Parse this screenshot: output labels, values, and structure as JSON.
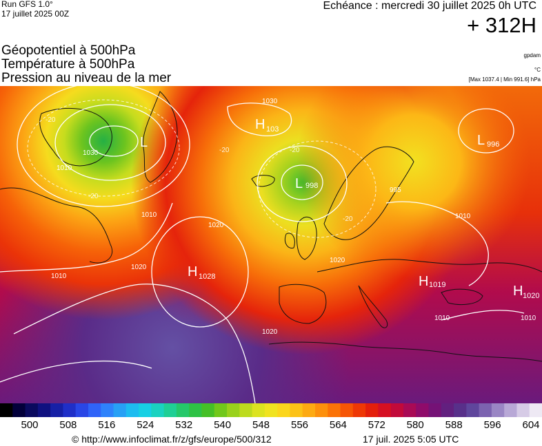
{
  "header": {
    "run_line1": "Run GFS 1.0°",
    "run_line2": "17 juillet 2025 00Z",
    "echeance": "Echéance : mercredi 30 juillet 2025 0h UTC",
    "horizon": "+ 312H"
  },
  "titles": {
    "line1": "Géopotentiel à 500hPa",
    "line2": "Température à 500hPa",
    "line3": "Pression au niveau de la mer"
  },
  "units": {
    "geopotential": "gpdam",
    "temperature": "°C",
    "pressure_range": "[Max 1037.4 | Min 991.6] hPa"
  },
  "map": {
    "highs": [
      {
        "letter": "H",
        "value": "103"
      },
      {
        "letter": "H",
        "value": "1028"
      },
      {
        "letter": "H",
        "value": "1019"
      },
      {
        "letter": "H",
        "value": "1020"
      }
    ],
    "lows": [
      {
        "letter": "L",
        "value": ""
      },
      {
        "letter": "L",
        "value": "998"
      },
      {
        "letter": "L",
        "value": "996"
      }
    ],
    "isobar_labels": [
      "1030",
      "1010",
      "1010",
      "1020",
      "1030",
      "1020",
      "1020",
      "1010",
      "995",
      "1010",
      "1010",
      "1010",
      "1020"
    ],
    "temperature_labels": [
      "-20",
      "-20",
      "-20",
      "-20",
      "-20"
    ]
  },
  "colors": {
    "sea_line": "#111111",
    "isobar": "#ffffff",
    "scale": [
      "#000000",
      "#02003a",
      "#0a0a5e",
      "#0f1180",
      "#1620a6",
      "#1f2fc8",
      "#2946e6",
      "#2f63f8",
      "#2e82fb",
      "#27a0f5",
      "#1dbcf0",
      "#17d0e4",
      "#1ad2c0",
      "#1fcf95",
      "#25c86a",
      "#2ec245",
      "#45bf26",
      "#71c81a",
      "#99d11b",
      "#bddb1e",
      "#dce320",
      "#f0e320",
      "#fbd61c",
      "#fcc217",
      "#fdaa12",
      "#fd900c",
      "#fb7307",
      "#f65505",
      "#ee3805",
      "#e41f0b",
      "#d61022",
      "#c20a3a",
      "#a90a55",
      "#8f0b6a",
      "#751276",
      "#62207f",
      "#58308a",
      "#5f469c",
      "#7c63b0",
      "#9a86c4",
      "#b8a8d6",
      "#d6cbe6",
      "#eee9f4"
    ]
  },
  "legend": {
    "ticks": [
      "500",
      "508",
      "516",
      "524",
      "532",
      "540",
      "548",
      "556",
      "564",
      "572",
      "580",
      "588",
      "596",
      "604"
    ]
  },
  "footer": {
    "url": "© http://www.infoclimat.fr/z/gfs/europe/500/312",
    "timestamp": "17 juil. 2025  5:05 UTC"
  }
}
